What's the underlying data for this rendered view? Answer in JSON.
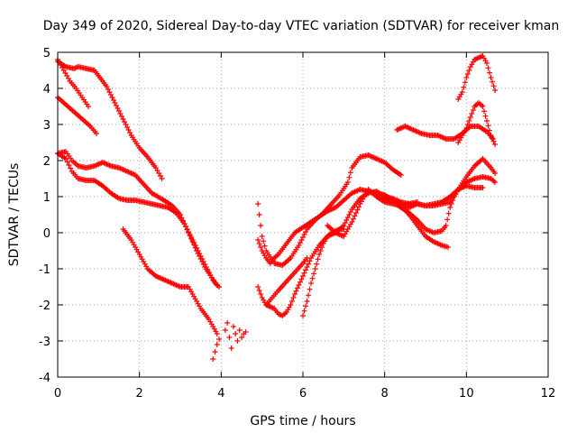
{
  "chart_data": {
    "type": "scatter",
    "title": "Day 349 of 2020, Sidereal Day-to-day VTEC variation (SDTVAR) for receiver kman",
    "xlabel": "GPS time / hours",
    "ylabel": "SDTVAR / TECUs",
    "xlim": [
      0,
      12
    ],
    "ylim": [
      -4,
      5
    ],
    "x_ticks": [
      0,
      2,
      4,
      6,
      8,
      10,
      12
    ],
    "y_ticks": [
      -4,
      -3,
      -2,
      -1,
      0,
      1,
      2,
      3,
      4,
      5
    ],
    "grid": true,
    "marker": "plus",
    "color": "#ff0000",
    "series": [
      {
        "x": [
          0.0,
          0.2,
          0.4,
          0.5,
          0.7,
          0.9,
          1.0,
          1.2,
          1.4,
          1.6,
          1.8,
          2.0,
          2.2,
          2.4,
          2.55
        ],
        "y": [
          4.75,
          4.6,
          4.55,
          4.6,
          4.55,
          4.5,
          4.35,
          4.05,
          3.6,
          3.15,
          2.7,
          2.35,
          2.1,
          1.8,
          1.5
        ]
      },
      {
        "x": [
          0.0,
          0.15,
          0.3,
          0.45,
          0.6,
          0.75
        ],
        "y": [
          4.8,
          4.5,
          4.2,
          4.0,
          3.75,
          3.5
        ]
      },
      {
        "x": [
          0.0,
          0.2,
          0.4,
          0.6,
          0.8,
          0.95
        ],
        "y": [
          3.75,
          3.55,
          3.35,
          3.15,
          2.95,
          2.75
        ]
      },
      {
        "x": [
          0.0,
          0.2,
          0.35,
          0.5,
          0.7,
          0.9,
          1.1,
          1.3,
          1.5,
          1.7,
          1.9,
          2.1,
          2.3,
          2.6,
          2.8,
          3.0,
          3.2,
          3.4,
          3.6,
          3.8,
          3.9
        ],
        "y": [
          2.2,
          2.25,
          2.0,
          1.85,
          1.8,
          1.85,
          1.95,
          1.85,
          1.8,
          1.7,
          1.6,
          1.35,
          1.1,
          0.9,
          0.75,
          0.5,
          0.0,
          -0.5,
          -0.95,
          -1.3,
          -1.45
        ]
      },
      {
        "x": [
          0.0,
          0.2,
          0.35,
          0.5,
          0.7,
          0.9,
          1.1,
          1.3,
          1.5,
          1.7,
          1.9,
          2.1,
          2.3,
          2.5,
          2.7,
          2.9,
          3.1,
          3.3,
          3.5,
          3.7,
          3.85,
          3.95
        ],
        "y": [
          2.2,
          2.05,
          1.7,
          1.5,
          1.45,
          1.45,
          1.3,
          1.1,
          0.95,
          0.9,
          0.9,
          0.85,
          0.8,
          0.75,
          0.7,
          0.55,
          0.25,
          -0.2,
          -0.65,
          -1.1,
          -1.4,
          -1.5
        ]
      },
      {
        "x": [
          1.6,
          1.8,
          2.0,
          2.2,
          2.4,
          2.6,
          2.8,
          3.0,
          3.2,
          3.3,
          3.5,
          3.7,
          3.9,
          3.95
        ],
        "y": [
          0.1,
          -0.2,
          -0.6,
          -1.0,
          -1.2,
          -1.3,
          -1.4,
          -1.5,
          -1.5,
          -1.7,
          -2.1,
          -2.4,
          -2.8,
          -2.95
        ]
      },
      {
        "x": [
          3.8,
          3.85,
          3.9
        ],
        "y": [
          -3.5,
          -3.3,
          -3.1
        ]
      },
      {
        "x": [
          4.1,
          4.15,
          4.2,
          4.25,
          4.3,
          4.35,
          4.4,
          4.45,
          4.5,
          4.55,
          4.6
        ],
        "y": [
          -2.7,
          -2.5,
          -2.9,
          -3.2,
          -2.6,
          -2.8,
          -3.0,
          -2.7,
          -2.9,
          -2.8,
          -2.75
        ]
      },
      {
        "x": [
          4.9,
          5.0,
          5.1,
          5.3,
          5.5,
          5.7,
          5.9,
          6.1,
          6.3,
          6.5,
          6.7,
          6.9,
          7.1,
          7.2,
          7.4,
          7.6,
          7.8,
          8.0,
          8.2,
          8.4
        ],
        "y": [
          0.8,
          -0.1,
          -0.5,
          -0.85,
          -0.9,
          -0.7,
          -0.35,
          0.1,
          0.35,
          0.55,
          0.8,
          1.05,
          1.4,
          1.8,
          2.1,
          2.15,
          2.05,
          1.95,
          1.75,
          1.6
        ]
      },
      {
        "x": [
          4.9,
          5.0,
          5.1,
          5.2,
          5.3,
          5.4,
          5.6,
          5.8,
          6.0,
          6.2,
          6.4,
          6.6,
          6.8,
          7.0,
          7.2,
          7.4,
          7.6,
          7.8,
          8.0,
          8.2,
          8.4,
          8.6,
          8.8,
          9.0,
          9.2,
          9.4,
          9.6,
          9.8,
          10.0,
          10.2,
          10.4
        ],
        "y": [
          -0.2,
          -0.5,
          -0.7,
          -0.85,
          -0.7,
          -0.6,
          -0.3,
          0.0,
          0.15,
          0.3,
          0.45,
          0.6,
          0.7,
          0.9,
          1.1,
          1.2,
          1.15,
          1.1,
          0.95,
          0.85,
          0.7,
          0.7,
          0.8,
          0.75,
          0.8,
          0.85,
          1.0,
          1.2,
          1.3,
          1.25,
          1.25
        ]
      },
      {
        "x": [
          4.9,
          5.0,
          5.1,
          5.2,
          5.3,
          5.4,
          5.5,
          5.6,
          5.7,
          5.8,
          6.0,
          6.2,
          6.4,
          6.6,
          6.8,
          7.0,
          7.2,
          7.4,
          7.6,
          7.8,
          8.0,
          8.2,
          8.4,
          8.6,
          8.8
        ],
        "y": [
          -1.5,
          -1.8,
          -2.0,
          -2.05,
          -2.1,
          -2.25,
          -2.3,
          -2.2,
          -2.0,
          -1.7,
          -1.2,
          -0.7,
          -0.35,
          -0.1,
          0.0,
          0.2,
          0.65,
          0.95,
          1.1,
          1.15,
          1.0,
          0.95,
          0.85,
          0.8,
          0.85
        ]
      },
      {
        "x": [
          5.1,
          5.25,
          5.4,
          5.6,
          5.8,
          6.0,
          6.1
        ],
        "y": [
          -2.0,
          -1.8,
          -1.6,
          -1.35,
          -1.1,
          -0.85,
          -0.7
        ]
      },
      {
        "x": [
          6.0,
          6.1,
          6.2,
          6.3,
          6.4,
          6.5,
          6.6,
          6.7,
          6.8,
          6.9,
          7.0
        ],
        "y": [
          -2.3,
          -1.9,
          -1.4,
          -1.0,
          -0.6,
          -0.3,
          -0.1,
          0.0,
          0.05,
          0.1,
          0.1
        ]
      },
      {
        "x": [
          6.6,
          6.8,
          7.0,
          7.2,
          7.4,
          7.6,
          7.8,
          8.0,
          8.2,
          8.4,
          8.6,
          8.8,
          9.0,
          9.2,
          9.4,
          9.6,
          9.8,
          10.0,
          10.2,
          10.4,
          10.6,
          10.7
        ],
        "y": [
          0.2,
          0.0,
          -0.1,
          0.3,
          0.8,
          1.2,
          1.0,
          0.85,
          0.8,
          0.75,
          0.8,
          0.8,
          0.75,
          0.75,
          0.8,
          0.85,
          1.2,
          1.55,
          1.85,
          2.05,
          1.8,
          1.65
        ]
      },
      {
        "x": [
          7.8,
          8.0,
          8.2,
          8.4,
          8.6,
          8.8,
          9.0,
          9.2,
          9.4,
          9.55
        ],
        "y": [
          1.1,
          1.05,
          0.9,
          0.75,
          0.5,
          0.2,
          -0.1,
          -0.25,
          -0.35,
          -0.4
        ]
      },
      {
        "x": [
          8.4,
          8.6,
          8.8,
          9.0,
          9.2,
          9.4,
          9.5,
          9.6,
          9.7,
          9.8,
          10.0,
          10.2,
          10.4,
          10.6,
          10.7
        ],
        "y": [
          0.7,
          0.55,
          0.35,
          0.1,
          0.0,
          0.05,
          0.2,
          0.7,
          1.0,
          1.2,
          1.4,
          1.5,
          1.55,
          1.5,
          1.4
        ]
      },
      {
        "x": [
          8.3,
          8.5,
          8.7,
          8.9,
          9.1,
          9.3,
          9.5,
          9.7,
          9.9,
          10.1,
          10.3,
          10.5,
          10.65
        ],
        "y": [
          2.85,
          2.95,
          2.85,
          2.75,
          2.7,
          2.7,
          2.6,
          2.6,
          2.75,
          2.95,
          2.95,
          2.8,
          2.6
        ]
      },
      {
        "x": [
          9.8,
          9.9,
          10.0,
          10.1,
          10.2,
          10.3,
          10.4,
          10.5,
          10.6,
          10.7
        ],
        "y": [
          2.5,
          2.7,
          2.9,
          3.2,
          3.5,
          3.6,
          3.5,
          3.1,
          2.7,
          2.45
        ]
      },
      {
        "x": [
          9.8,
          9.9,
          10.0,
          10.1,
          10.2,
          10.3,
          10.4,
          10.5,
          10.6,
          10.7
        ],
        "y": [
          3.7,
          3.9,
          4.3,
          4.6,
          4.8,
          4.85,
          4.9,
          4.7,
          4.3,
          3.95
        ]
      }
    ]
  }
}
